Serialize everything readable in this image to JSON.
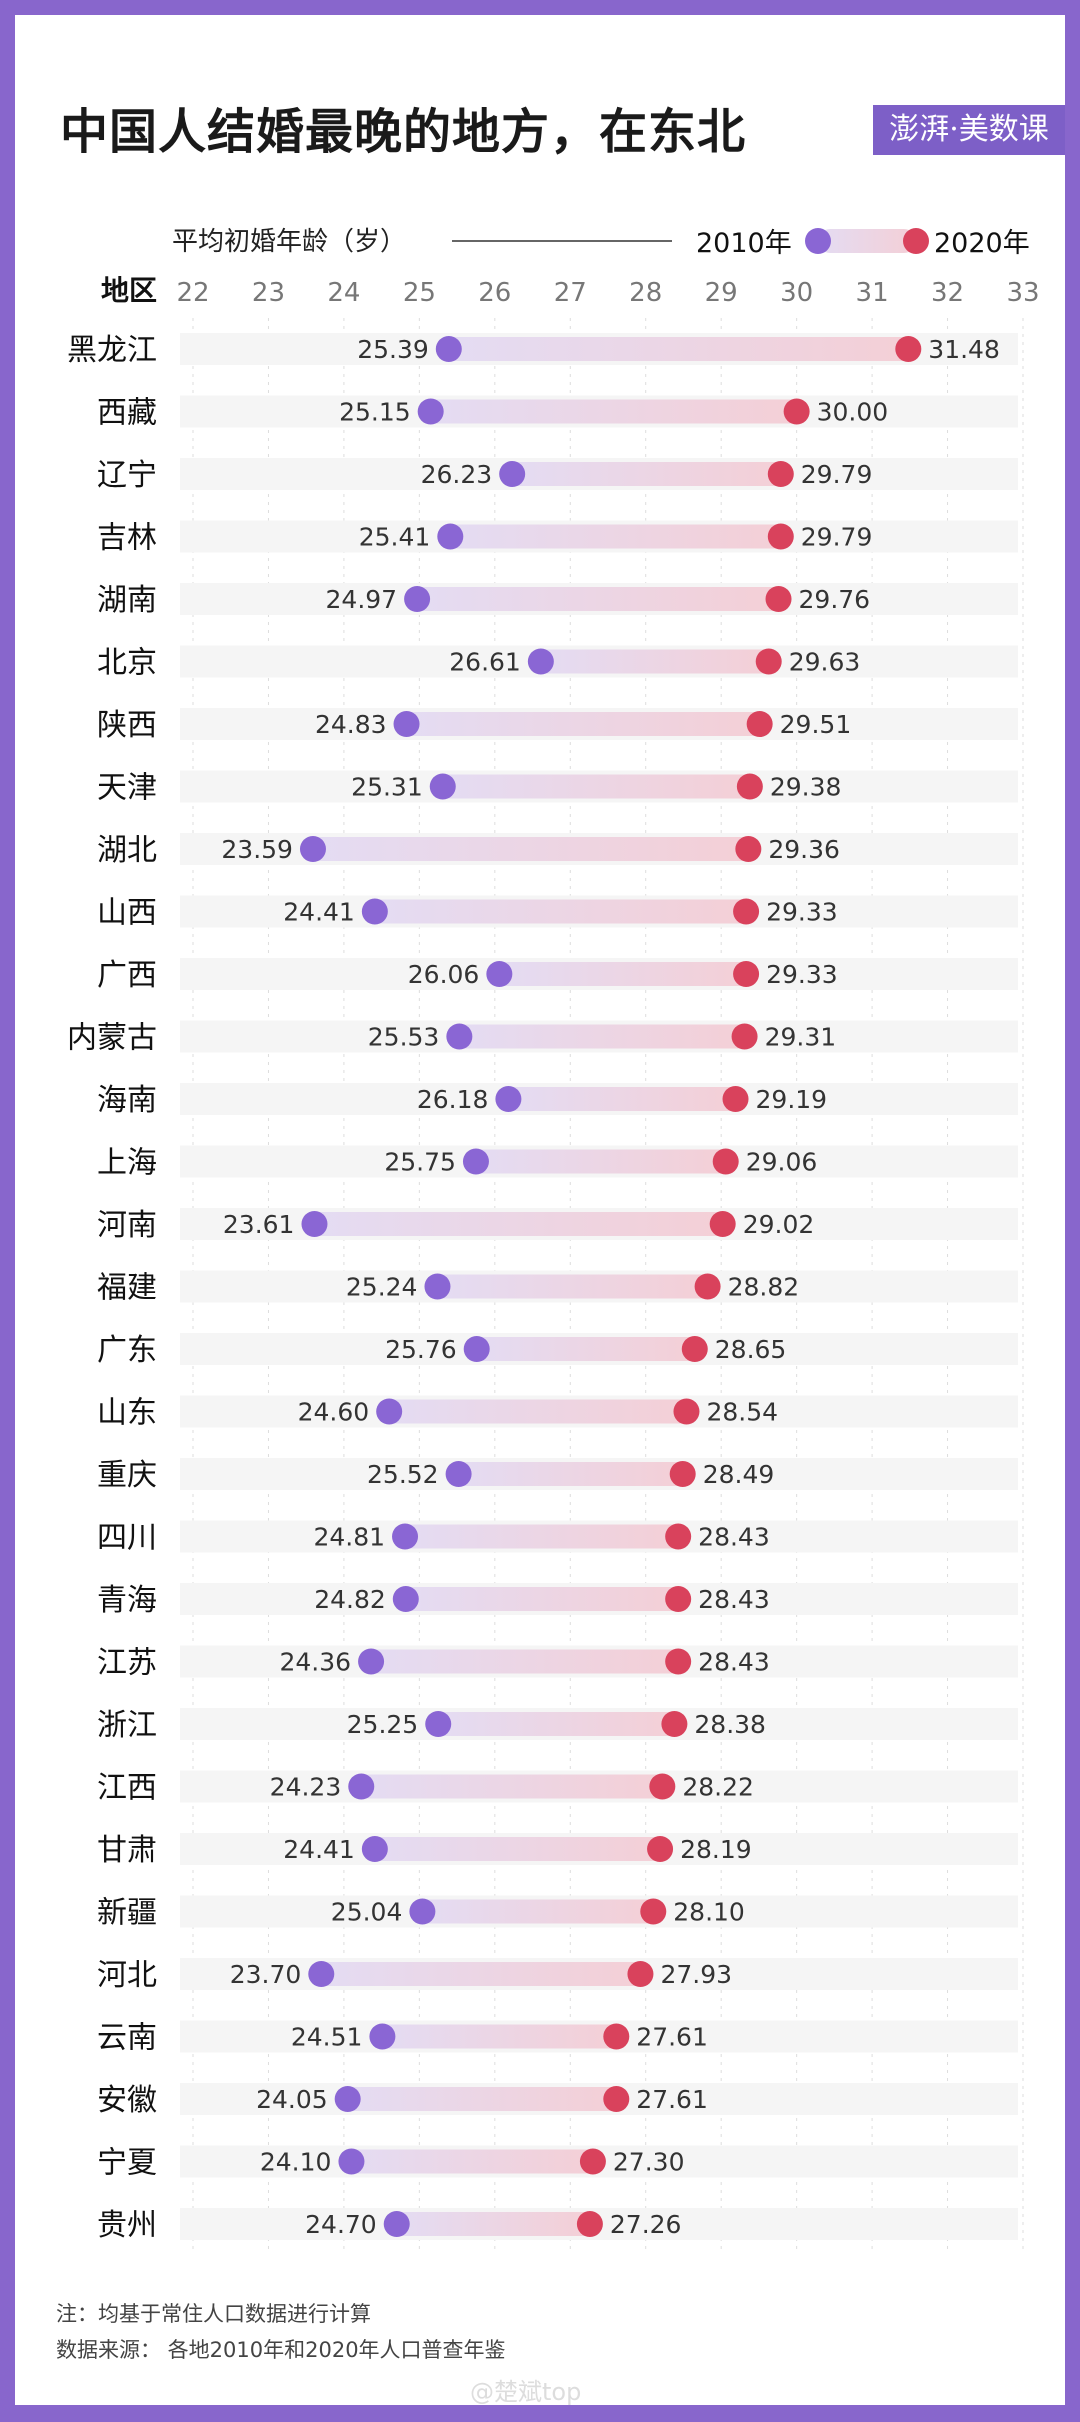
{
  "header": {
    "title": "中国人结婚最晚的地方，在东北",
    "logo": "澎湃·美数课"
  },
  "chart_data": {
    "type": "dumbbell",
    "subtitle": "平均初婚年龄（岁）",
    "category_header": "地区",
    "xlim": [
      22,
      33
    ],
    "ticks": [
      22,
      23,
      24,
      25,
      26,
      27,
      28,
      29,
      30,
      31,
      32,
      33
    ],
    "legend_position": "top-right",
    "colors": {
      "2010": "#8a66d4",
      "2020": "#d9425c"
    },
    "series": [
      {
        "name": "2010年"
      },
      {
        "name": "2020年"
      }
    ],
    "categories": [
      "黑龙江",
      "西藏",
      "辽宁",
      "吉林",
      "湖南",
      "北京",
      "陕西",
      "天津",
      "湖北",
      "山西",
      "广西",
      "内蒙古",
      "海南",
      "上海",
      "河南",
      "福建",
      "广东",
      "山东",
      "重庆",
      "四川",
      "青海",
      "江苏",
      "浙江",
      "江西",
      "甘肃",
      "新疆",
      "河北",
      "云南",
      "安徽",
      "宁夏",
      "贵州"
    ],
    "values_2010": [
      25.39,
      25.15,
      26.23,
      25.41,
      24.97,
      26.61,
      24.83,
      25.31,
      23.59,
      24.41,
      26.06,
      25.53,
      26.18,
      25.75,
      23.61,
      25.24,
      25.76,
      24.6,
      25.52,
      24.81,
      24.82,
      24.36,
      25.25,
      24.23,
      24.41,
      25.04,
      23.7,
      24.51,
      24.05,
      24.1,
      24.7
    ],
    "values_2020": [
      31.48,
      30.0,
      29.79,
      29.79,
      29.76,
      29.63,
      29.51,
      29.38,
      29.36,
      29.33,
      29.33,
      29.31,
      29.19,
      29.06,
      29.02,
      28.82,
      28.65,
      28.54,
      28.49,
      28.43,
      28.43,
      28.43,
      28.38,
      28.22,
      28.19,
      28.1,
      27.93,
      27.61,
      27.61,
      27.3,
      27.26
    ]
  },
  "footer": {
    "note": "注：均基于常住人口数据进行计算",
    "source": "数据来源：  各地2010年和2020年人口普查年鉴",
    "watermark": "@楚斌top"
  }
}
